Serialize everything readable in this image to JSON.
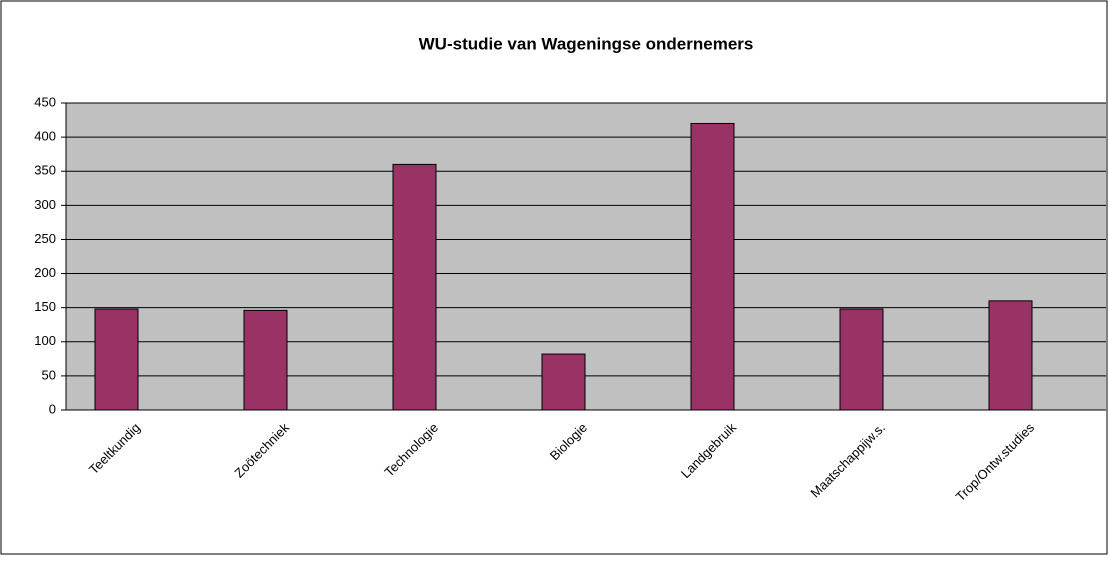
{
  "chart_data": {
    "type": "bar",
    "title": "WU-studie van Wageningse ondernemers",
    "categories": [
      "Teeltkundig",
      "Zoötechniek",
      "Technologie",
      "Biologie",
      "Landgebruik",
      "Maatschappijw.s.",
      "Trop/Ontw.studies"
    ],
    "values": [
      148,
      146,
      360,
      82,
      420,
      148,
      160
    ],
    "color": "#993366",
    "ylim": [
      0,
      450
    ],
    "yticks": [
      0,
      50,
      100,
      150,
      200,
      250,
      300,
      350,
      400,
      450
    ],
    "grid": true
  }
}
